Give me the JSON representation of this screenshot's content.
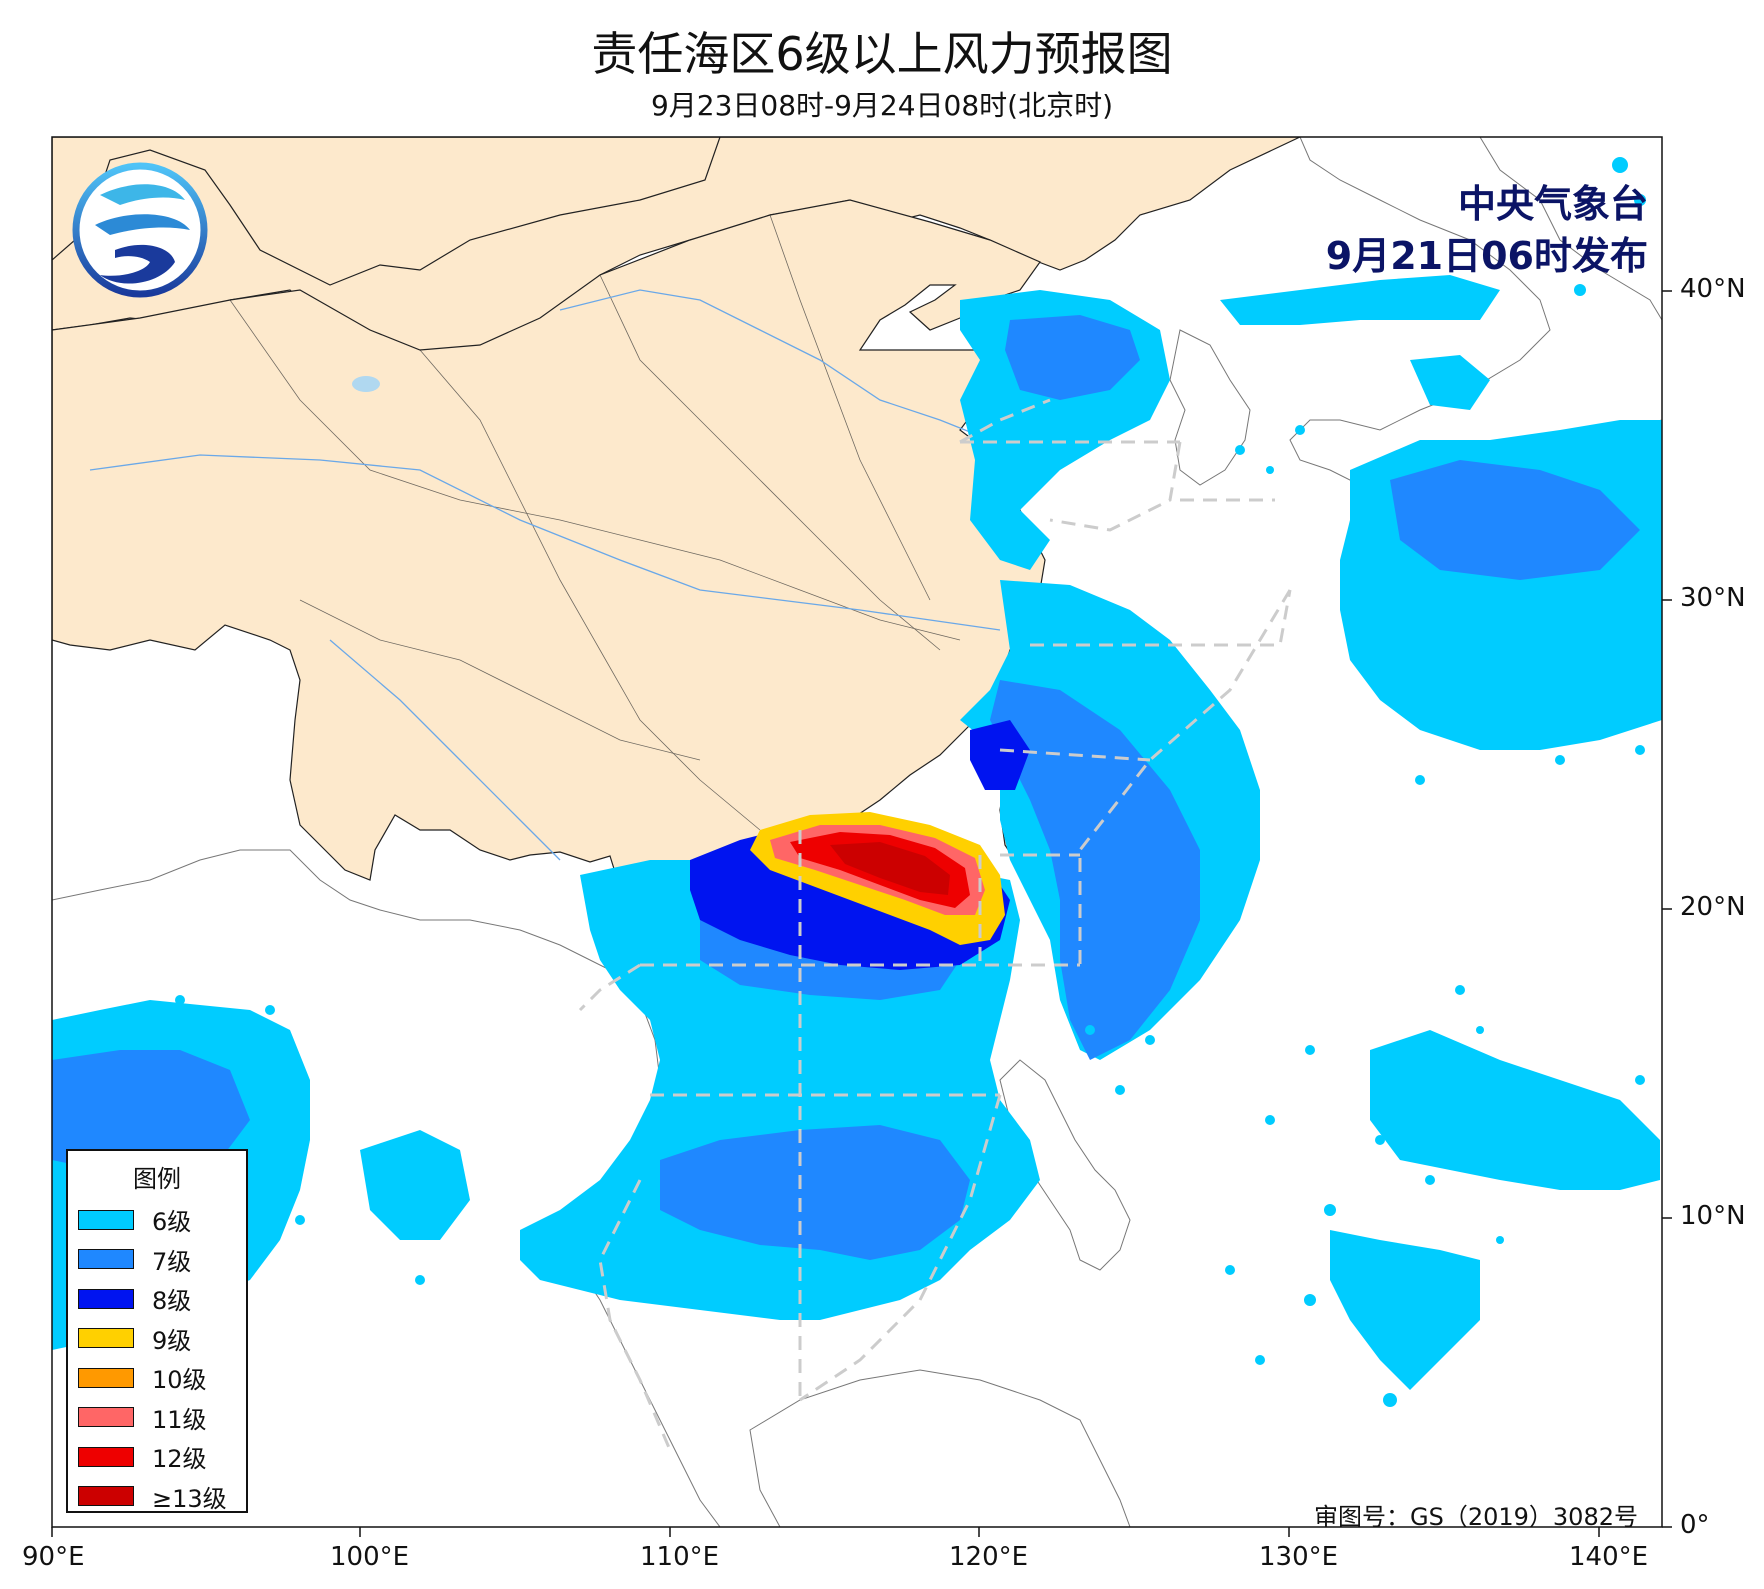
{
  "header": {
    "title": "责任海区6级以上风力预报图",
    "subtitle": "9月23日08时-9月24日08时(北京时)"
  },
  "issuer": {
    "line1": "中央气象台",
    "line2": "9月21日06时发布"
  },
  "approval_number": "审图号：GS（2019）3082号",
  "legend": {
    "title": "图例",
    "items": [
      {
        "label": "6级",
        "color": "#00ccff"
      },
      {
        "label": "7级",
        "color": "#1f88ff"
      },
      {
        "label": "8级",
        "color": "#0014f0"
      },
      {
        "label": "9级",
        "color": "#ffd000"
      },
      {
        "label": "10级",
        "color": "#ff9900"
      },
      {
        "label": "11级",
        "color": "#ff6666"
      },
      {
        "label": "12级",
        "color": "#ee0000"
      },
      {
        "label": "≥13级",
        "color": "#cc0000"
      }
    ]
  },
  "axes": {
    "lon_ticks": [
      "90°E",
      "100°E",
      "110°E",
      "120°E",
      "130°E",
      "140°E"
    ],
    "lat_ticks": [
      "0°",
      "10°N",
      "20°N",
      "30°N",
      "40°N"
    ]
  },
  "colors": {
    "land_china": "#fde9cc",
    "land_other": "#ffffff",
    "sea": "#ffffff",
    "zone_lines": "#cccccc",
    "river": "#6aa8e8"
  }
}
